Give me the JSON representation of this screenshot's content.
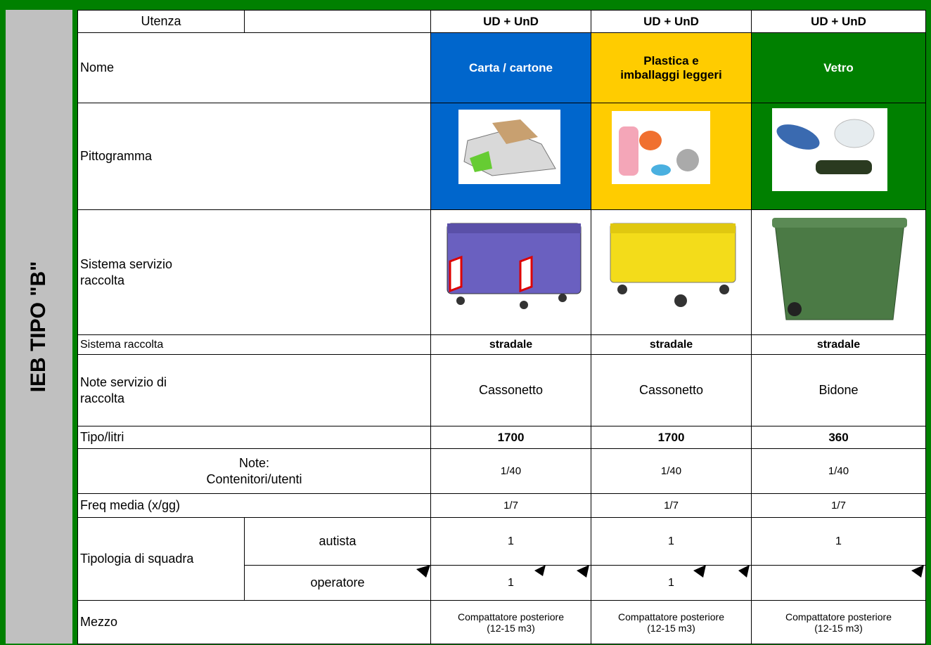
{
  "sidebar": "IEB TIPO \"B\"",
  "table": {
    "rows": [
      {
        "label": [
          "Utenza"
        ],
        "cells": [
          [
            "UD + UnD"
          ],
          [
            "UD + UnD"
          ],
          [
            "UD + UnD"
          ]
        ]
      },
      {
        "label": [
          "Nome"
        ],
        "cells": [
          [
            "Carta / cartone"
          ],
          [
            "Plastica e",
            "imballaggi leggeri"
          ],
          [
            "Vetro"
          ]
        ]
      },
      {
        "label": [
          "Pittogramma"
        ]
      },
      {
        "label": [
          "Sistema servizio",
          "raccolta"
        ]
      },
      {
        "label": [
          "Sistema raccolta"
        ],
        "cells": [
          [
            "stradale"
          ],
          [
            "stradale"
          ],
          [
            "stradale"
          ]
        ]
      },
      {
        "label": [
          "Note servizio di",
          "raccolta"
        ],
        "cells": [
          [
            "Cassonetto"
          ],
          [
            "Cassonetto"
          ],
          [
            "Bidone"
          ]
        ]
      },
      {
        "label": [
          "Tipo/litri"
        ],
        "cells": [
          [
            1700
          ],
          [
            1700
          ],
          [
            360
          ]
        ]
      },
      {
        "label": [
          "Note:",
          "Contenitori/utenti"
        ],
        "cells": [
          [
            "1/40"
          ],
          [
            "1/40"
          ],
          [
            "1/40"
          ]
        ]
      },
      {
        "label": [
          "Freq media (x/gg)"
        ],
        "cells": [
          [
            "1/7"
          ],
          [
            "1/7"
          ],
          [
            "1/7"
          ]
        ]
      },
      {
        "label": [
          "Mezzo"
        ],
        "cells": [
          [
            "Compattatore posteriore",
            "(12-15 m3)"
          ],
          [
            "Compattatore posteriore",
            "(12-15 m3)"
          ],
          [
            "Compattatore posteriore",
            "(12-15 m3)"
          ]
        ]
      }
    ],
    "team": {
      "label": "Tipologia di squadra",
      "sub": [
        {
          "label": "autista",
          "cells": [
            1,
            1,
            1
          ]
        },
        {
          "label": "operatore",
          "cells": [
            1,
            1
          ]
        }
      ]
    }
  }
}
